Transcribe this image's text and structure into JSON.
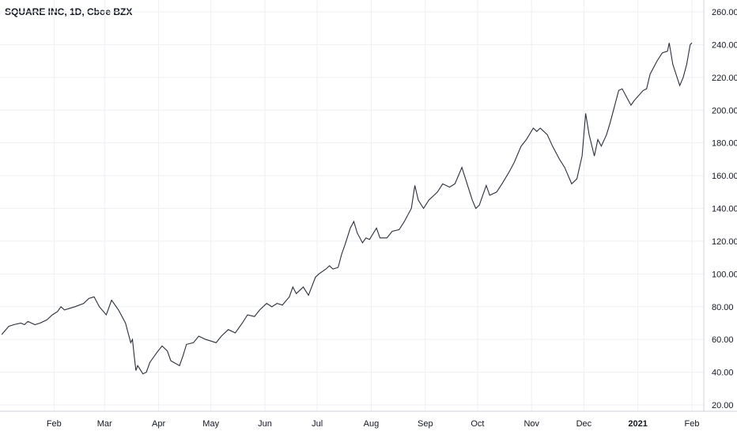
{
  "chart_data": {
    "type": "line",
    "title": "SQUARE INC, 1D, Cboe BZX",
    "xlabel": "",
    "ylabel": "",
    "x_ticks": [
      {
        "label": "Feb",
        "date": "2020-02-01"
      },
      {
        "label": "Mar",
        "date": "2020-03-01"
      },
      {
        "label": "Apr",
        "date": "2020-04-01"
      },
      {
        "label": "May",
        "date": "2020-05-01"
      },
      {
        "label": "Jun",
        "date": "2020-06-01"
      },
      {
        "label": "Jul",
        "date": "2020-07-01"
      },
      {
        "label": "Aug",
        "date": "2020-08-01"
      },
      {
        "label": "Sep",
        "date": "2020-09-01"
      },
      {
        "label": "Oct",
        "date": "2020-10-01"
      },
      {
        "label": "Nov",
        "date": "2020-11-01"
      },
      {
        "label": "Dec",
        "date": "2020-12-01"
      },
      {
        "label": "2021",
        "date": "2021-01-01",
        "bold": true
      },
      {
        "label": "Feb",
        "date": "2021-02-01"
      }
    ],
    "y_ticks": [
      "20.00",
      "40.00",
      "60.00",
      "80.00",
      "100.00",
      "120.00",
      "140.00",
      "160.00",
      "180.00",
      "200.00",
      "220.00",
      "240.00",
      "260.00"
    ],
    "ylim": [
      20,
      260
    ],
    "xlim": [
      "2020-01-01",
      "2021-02-03"
    ],
    "grid": true,
    "y_axis_position": "right",
    "line_color": "#2a2e39",
    "series": [
      {
        "points": [
          [
            "2020-01-02",
            63
          ],
          [
            "2020-01-06",
            68
          ],
          [
            "2020-01-09",
            69
          ],
          [
            "2020-01-13",
            70
          ],
          [
            "2020-01-15",
            69
          ],
          [
            "2020-01-17",
            71
          ],
          [
            "2020-01-21",
            69
          ],
          [
            "2020-01-24",
            70
          ],
          [
            "2020-01-28",
            72
          ],
          [
            "2020-01-31",
            75
          ],
          [
            "2020-02-03",
            77
          ],
          [
            "2020-02-05",
            80
          ],
          [
            "2020-02-07",
            78
          ],
          [
            "2020-02-10",
            79
          ],
          [
            "2020-02-13",
            80
          ],
          [
            "2020-02-18",
            82
          ],
          [
            "2020-02-21",
            85
          ],
          [
            "2020-02-24",
            86
          ],
          [
            "2020-02-27",
            80
          ],
          [
            "2020-03-02",
            75
          ],
          [
            "2020-03-05",
            84
          ],
          [
            "2020-03-09",
            78
          ],
          [
            "2020-03-11",
            74
          ],
          [
            "2020-03-13",
            70
          ],
          [
            "2020-03-16",
            58
          ],
          [
            "2020-03-17",
            60
          ],
          [
            "2020-03-18",
            50
          ],
          [
            "2020-03-19",
            41
          ],
          [
            "2020-03-20",
            44
          ],
          [
            "2020-03-23",
            39
          ],
          [
            "2020-03-25",
            40
          ],
          [
            "2020-03-27",
            46
          ],
          [
            "2020-03-31",
            52
          ],
          [
            "2020-04-03",
            56
          ],
          [
            "2020-04-06",
            53
          ],
          [
            "2020-04-08",
            47
          ],
          [
            "2020-04-13",
            44
          ],
          [
            "2020-04-15",
            50
          ],
          [
            "2020-04-17",
            57
          ],
          [
            "2020-04-21",
            58
          ],
          [
            "2020-04-24",
            62
          ],
          [
            "2020-04-28",
            60
          ],
          [
            "2020-05-01",
            59
          ],
          [
            "2020-05-04",
            58
          ],
          [
            "2020-05-07",
            62
          ],
          [
            "2020-05-11",
            66
          ],
          [
            "2020-05-15",
            64
          ],
          [
            "2020-05-19",
            70
          ],
          [
            "2020-05-22",
            75
          ],
          [
            "2020-05-26",
            74
          ],
          [
            "2020-05-29",
            78
          ],
          [
            "2020-06-02",
            82
          ],
          [
            "2020-06-05",
            80
          ],
          [
            "2020-06-08",
            82
          ],
          [
            "2020-06-11",
            81
          ],
          [
            "2020-06-15",
            86
          ],
          [
            "2020-06-17",
            92
          ],
          [
            "2020-06-19",
            88
          ],
          [
            "2020-06-23",
            92
          ],
          [
            "2020-06-26",
            87
          ],
          [
            "2020-06-30",
            98
          ],
          [
            "2020-07-02",
            100
          ],
          [
            "2020-07-06",
            103
          ],
          [
            "2020-07-08",
            105
          ],
          [
            "2020-07-10",
            103
          ],
          [
            "2020-07-13",
            104
          ],
          [
            "2020-07-15",
            112
          ],
          [
            "2020-07-17",
            118
          ],
          [
            "2020-07-20",
            128
          ],
          [
            "2020-07-22",
            132
          ],
          [
            "2020-07-24",
            125
          ],
          [
            "2020-07-27",
            119
          ],
          [
            "2020-07-29",
            122
          ],
          [
            "2020-07-31",
            121
          ],
          [
            "2020-08-04",
            128
          ],
          [
            "2020-08-06",
            122
          ],
          [
            "2020-08-10",
            122
          ],
          [
            "2020-08-13",
            126
          ],
          [
            "2020-08-17",
            127
          ],
          [
            "2020-08-20",
            132
          ],
          [
            "2020-08-24",
            140
          ],
          [
            "2020-08-26",
            154
          ],
          [
            "2020-08-28",
            145
          ],
          [
            "2020-08-31",
            140
          ],
          [
            "2020-09-03",
            145
          ],
          [
            "2020-09-08",
            150
          ],
          [
            "2020-09-11",
            155
          ],
          [
            "2020-09-15",
            153
          ],
          [
            "2020-09-18",
            155
          ],
          [
            "2020-09-22",
            165
          ],
          [
            "2020-09-25",
            155
          ],
          [
            "2020-09-28",
            145
          ],
          [
            "2020-09-30",
            140
          ],
          [
            "2020-10-02",
            142
          ],
          [
            "2020-10-06",
            154
          ],
          [
            "2020-10-08",
            148
          ],
          [
            "2020-10-12",
            150
          ],
          [
            "2020-10-15",
            155
          ],
          [
            "2020-10-19",
            162
          ],
          [
            "2020-10-22",
            168
          ],
          [
            "2020-10-26",
            178
          ],
          [
            "2020-10-29",
            182
          ],
          [
            "2020-11-02",
            189
          ],
          [
            "2020-11-04",
            187
          ],
          [
            "2020-11-06",
            189
          ],
          [
            "2020-11-10",
            185
          ],
          [
            "2020-11-13",
            178
          ],
          [
            "2020-11-17",
            170
          ],
          [
            "2020-11-20",
            165
          ],
          [
            "2020-11-24",
            155
          ],
          [
            "2020-11-27",
            158
          ],
          [
            "2020-11-30",
            172
          ],
          [
            "2020-12-02",
            198
          ],
          [
            "2020-12-04",
            185
          ],
          [
            "2020-12-07",
            172
          ],
          [
            "2020-12-09",
            182
          ],
          [
            "2020-12-11",
            178
          ],
          [
            "2020-12-14",
            185
          ],
          [
            "2020-12-16",
            192
          ],
          [
            "2020-12-18",
            200
          ],
          [
            "2020-12-21",
            212
          ],
          [
            "2020-12-23",
            213
          ],
          [
            "2020-12-28",
            203
          ],
          [
            "2020-12-30",
            206
          ],
          [
            "2021-01-04",
            212
          ],
          [
            "2021-01-06",
            213
          ],
          [
            "2021-01-08",
            222
          ],
          [
            "2021-01-12",
            230
          ],
          [
            "2021-01-15",
            235
          ],
          [
            "2021-01-19",
            241
          ],
          [
            "2021-01-21",
            228
          ],
          [
            "2021-01-25",
            215
          ],
          [
            "2021-01-27",
            220
          ],
          [
            "2021-01-29",
            228
          ],
          [
            "2021-01-31",
            240
          ],
          [
            "2021-02-01",
            241
          ],
          [
            "2021-01-18",
            236
          ]
        ]
      }
    ]
  }
}
